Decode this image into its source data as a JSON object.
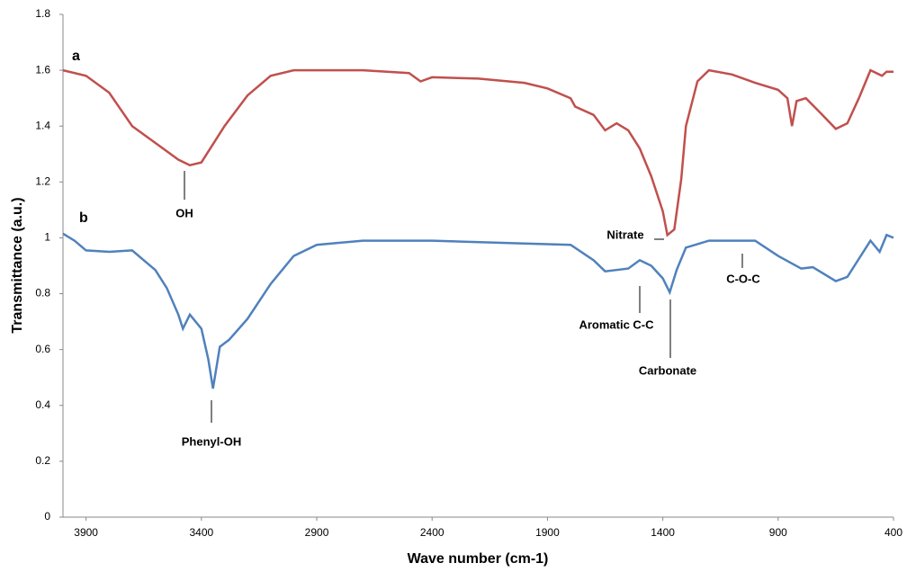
{
  "chart_data": {
    "type": "line",
    "xlabel": "Wave number (cm-1)",
    "ylabel": "Transmittance (a.u.)",
    "xlim": [
      4000,
      400
    ],
    "xticks": [
      3900,
      3400,
      2900,
      2400,
      1900,
      1400,
      900,
      400
    ],
    "ylim": [
      0,
      1.8
    ],
    "yticks": [
      0,
      0.2,
      0.4,
      0.6,
      0.8,
      1,
      1.2,
      1.4,
      1.6,
      1.8
    ],
    "grid": false,
    "series": [
      {
        "name": "a",
        "color": "#c0504d",
        "x": [
          4000,
          3900,
          3800,
          3700,
          3600,
          3500,
          3450,
          3400,
          3300,
          3200,
          3100,
          3000,
          2900,
          2700,
          2500,
          2450,
          2400,
          2200,
          2000,
          1900,
          1800,
          1780,
          1700,
          1650,
          1600,
          1550,
          1500,
          1450,
          1400,
          1380,
          1350,
          1320,
          1300,
          1250,
          1200,
          1100,
          1000,
          900,
          860,
          840,
          820,
          780,
          720,
          650,
          600,
          550,
          500,
          450,
          430,
          400
        ],
        "values": [
          1.6,
          1.58,
          1.52,
          1.4,
          1.34,
          1.28,
          1.26,
          1.27,
          1.4,
          1.51,
          1.58,
          1.6,
          1.6,
          1.6,
          1.59,
          1.56,
          1.575,
          1.57,
          1.555,
          1.535,
          1.5,
          1.47,
          1.44,
          1.385,
          1.41,
          1.385,
          1.32,
          1.22,
          1.095,
          1.01,
          1.03,
          1.21,
          1.4,
          1.56,
          1.6,
          1.585,
          1.555,
          1.53,
          1.5,
          1.4,
          1.49,
          1.5,
          1.45,
          1.39,
          1.41,
          1.5,
          1.6,
          1.58,
          1.595,
          1.595
        ]
      },
      {
        "name": "b",
        "color": "#4f81bd",
        "x": [
          4000,
          3950,
          3900,
          3800,
          3700,
          3650,
          3600,
          3550,
          3500,
          3480,
          3450,
          3400,
          3370,
          3350,
          3320,
          3280,
          3200,
          3100,
          3000,
          2900,
          2700,
          2400,
          2000,
          1800,
          1700,
          1650,
          1550,
          1500,
          1450,
          1400,
          1370,
          1340,
          1300,
          1200,
          1000,
          900,
          800,
          750,
          650,
          600,
          500,
          460,
          430,
          400
        ],
        "values": [
          1.015,
          0.99,
          0.955,
          0.95,
          0.955,
          0.92,
          0.885,
          0.82,
          0.725,
          0.675,
          0.725,
          0.675,
          0.565,
          0.46,
          0.61,
          0.635,
          0.71,
          0.835,
          0.935,
          0.975,
          0.99,
          0.99,
          0.98,
          0.975,
          0.92,
          0.88,
          0.89,
          0.92,
          0.9,
          0.855,
          0.805,
          0.885,
          0.965,
          0.99,
          0.99,
          0.935,
          0.89,
          0.895,
          0.845,
          0.86,
          0.99,
          0.95,
          1.01,
          1.0
        ]
      }
    ],
    "annotations": [
      "OH",
      "Phenyl-OH",
      "Nitrate",
      "Aromatic C-C",
      "Carbonate",
      "C-O-C"
    ]
  }
}
